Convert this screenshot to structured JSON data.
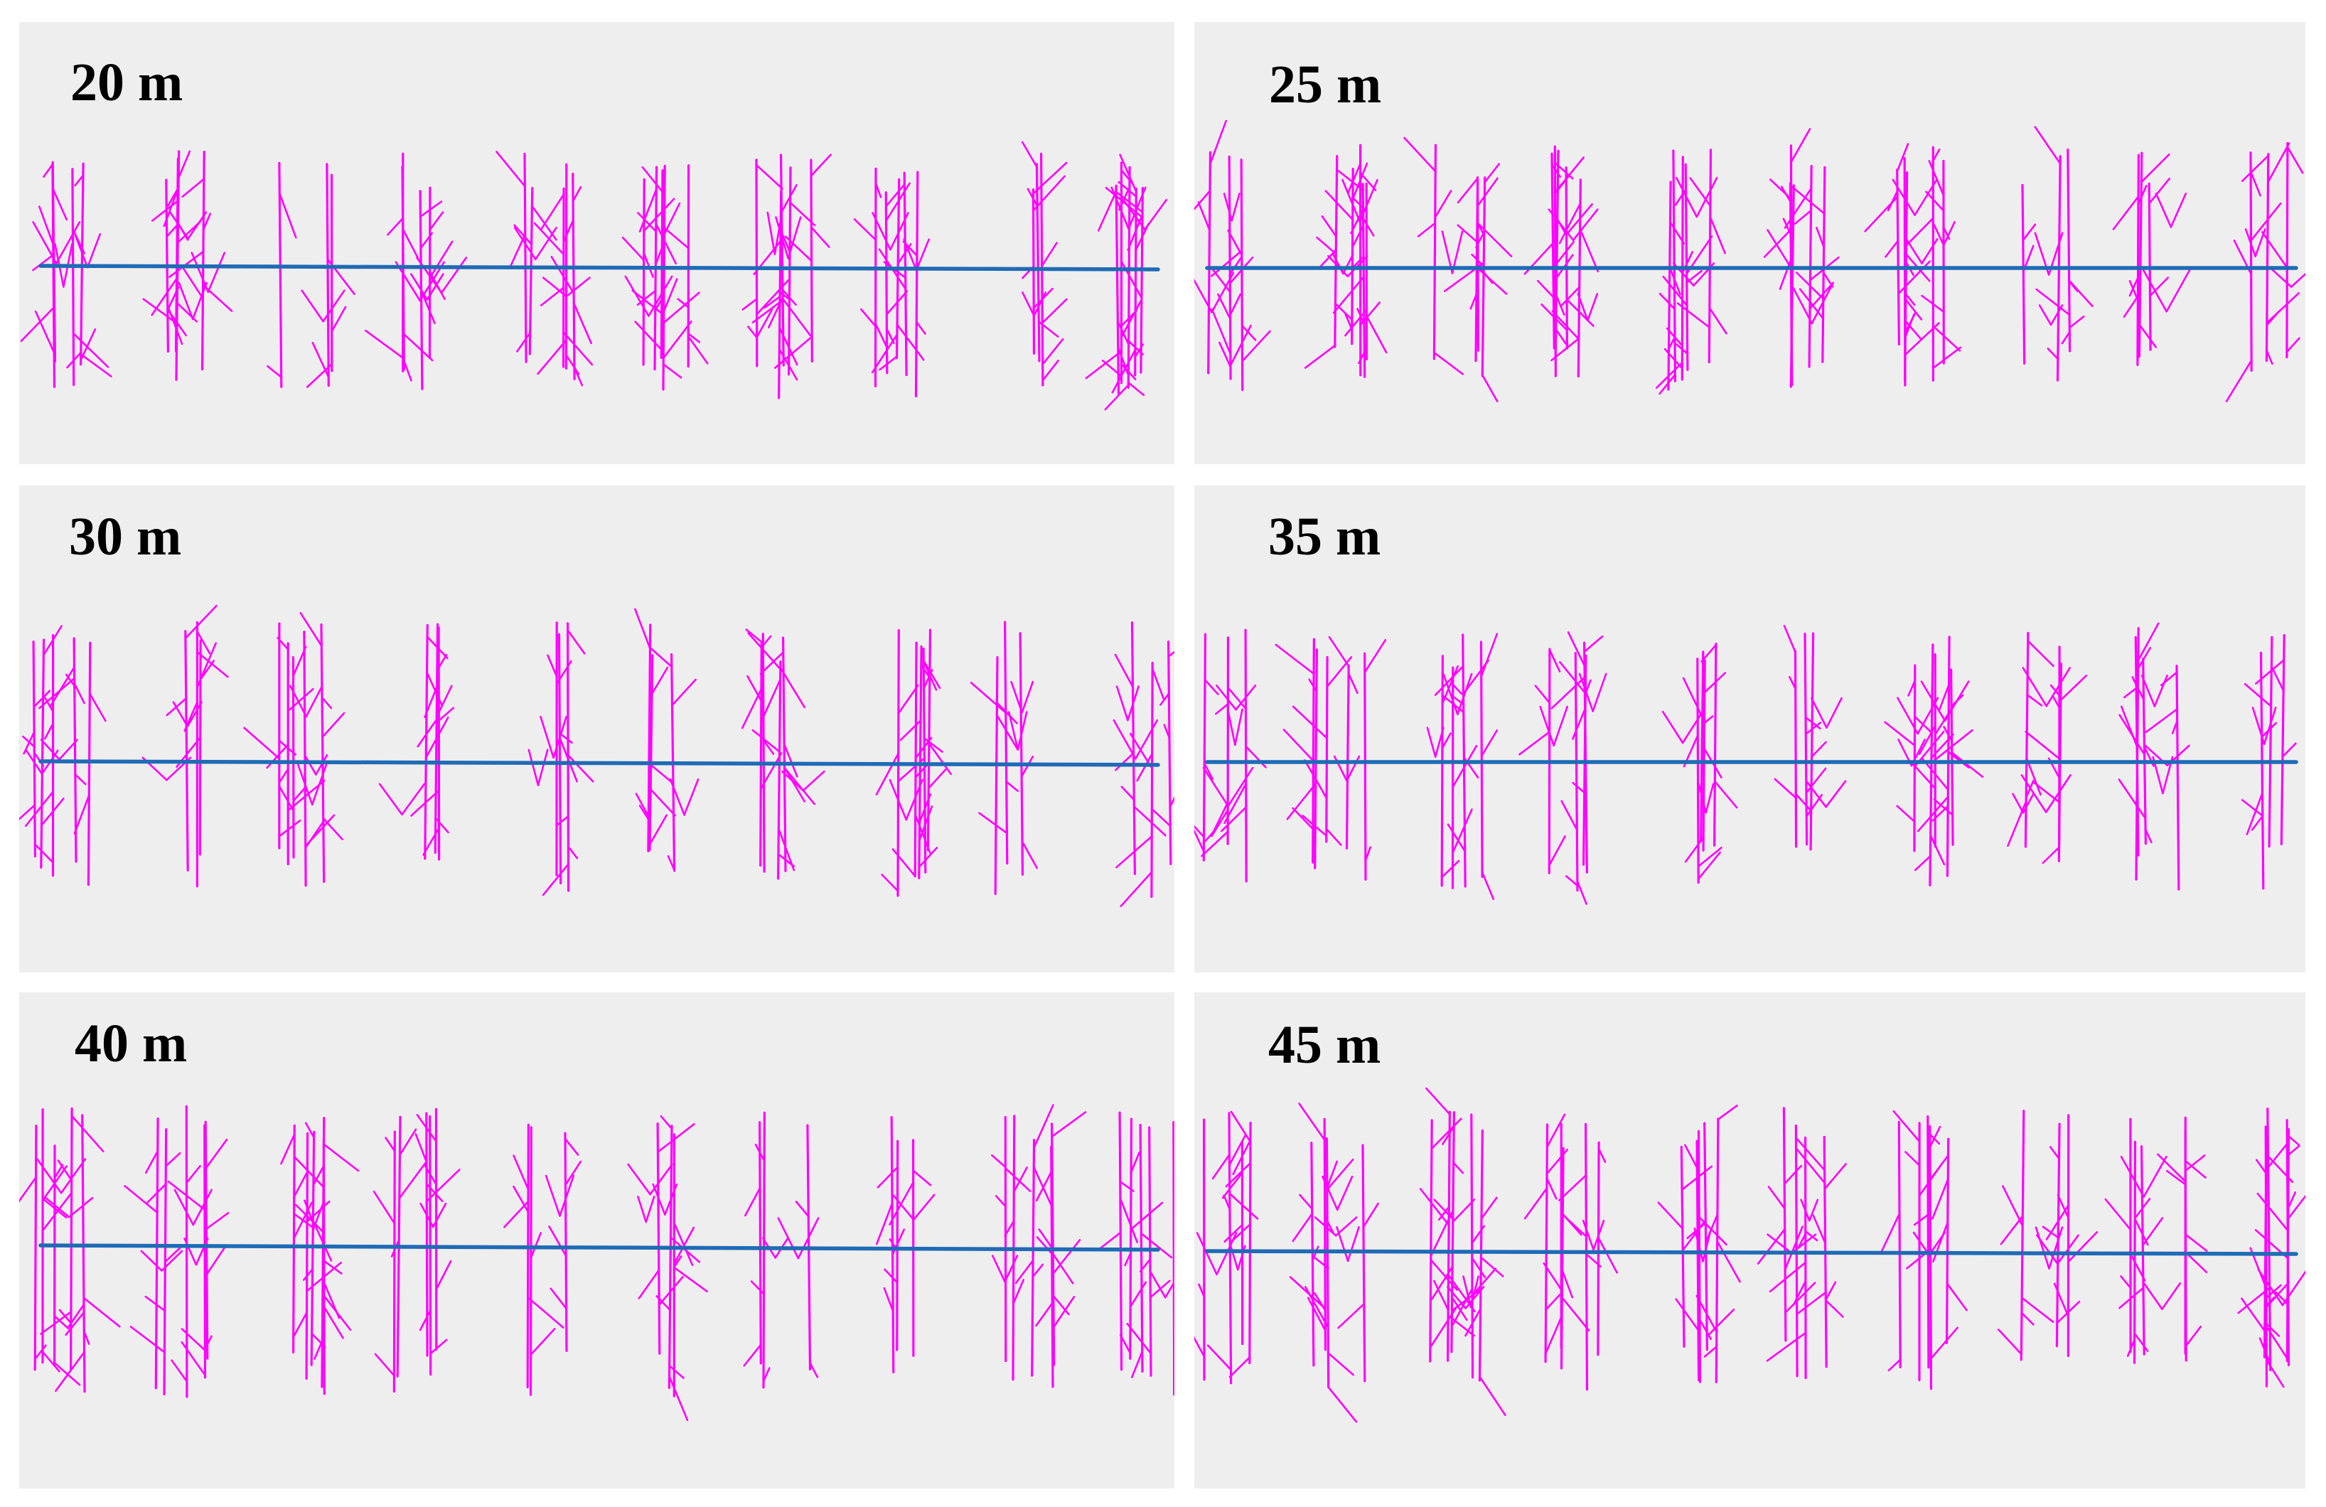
{
  "colors": {
    "background": "#efeeee",
    "fracture": "#ff00ff",
    "baseline": "#1f6bb5"
  },
  "panels": [
    {
      "label": "20 m",
      "cluster_count": 10,
      "baseline_tilt": "slightly-downward"
    },
    {
      "label": "25 m",
      "cluster_count": 10,
      "baseline_tilt": "level"
    },
    {
      "label": "30 m",
      "cluster_count": 10,
      "baseline_tilt": "slightly-downward"
    },
    {
      "label": "35 m",
      "cluster_count": 10,
      "baseline_tilt": "level"
    },
    {
      "label": "40 m",
      "cluster_count": 10,
      "baseline_tilt": "slightly-downward"
    },
    {
      "label": "45 m",
      "cluster_count": 10,
      "baseline_tilt": "slightly-downward"
    }
  ]
}
